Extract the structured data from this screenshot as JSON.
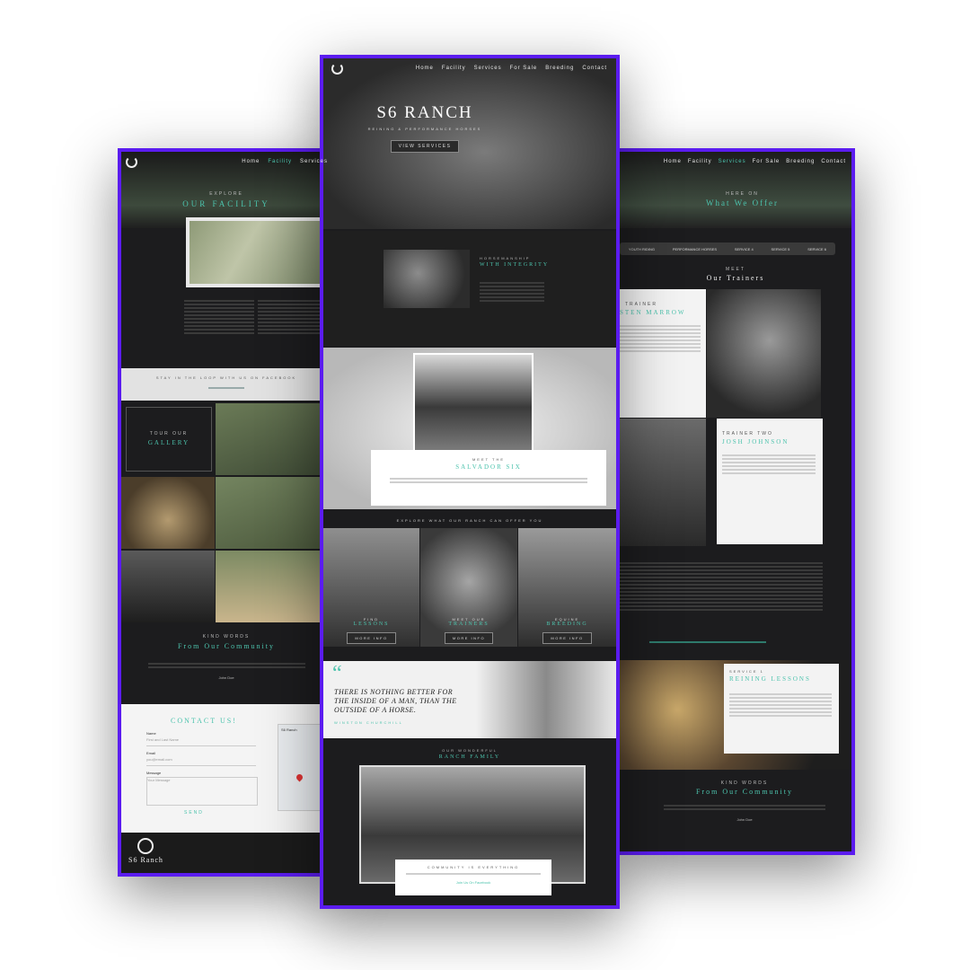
{
  "colors": {
    "frame": "#5b1cf0",
    "accent": "#4cc3ad",
    "dark": "#1c1c1e"
  },
  "left": {
    "nav": [
      "Home",
      "Facility",
      "Services"
    ],
    "explore_label": "EXPLORE",
    "facility_title": "OUR FACILITY",
    "stay_in_loop": "STAY IN THE LOOP WITH US ON FACEBOOK",
    "tour_label": "TOUR OUR",
    "gallery_title": "GALLERY",
    "kind_words_label": "KIND WORDS",
    "community_title": "From Our Community",
    "author": "John Doe",
    "contact_title": "CONTACT US!",
    "form": {
      "name_label": "Name",
      "name_placeholder": "First and Last Name",
      "email_label": "Email",
      "email_placeholder": "you@email.com",
      "message_label": "Message",
      "message_placeholder": "Your Message",
      "send_label": "SEND"
    },
    "map_title": "S6 Ranch",
    "footer_name": "S6 Ranch"
  },
  "center": {
    "nav": [
      "Home",
      "Facility",
      "Services",
      "For Sale",
      "Breeding",
      "Contact"
    ],
    "hero_title": "S6 RANCH",
    "hero_subtitle": "REINING & PERFORMANCE HORSES",
    "hero_button": "VIEW SERVICES",
    "integrity_label": "HORSEMANSHIP",
    "integrity_title": "WITH INTEGRITY",
    "meet_label": "MEET THE",
    "family_title": "SALVADOR SIX",
    "explore_text": "EXPLORE WHAT OUR RANCH CAN OFFER YOU",
    "services": [
      {
        "label": "FIND",
        "title": "LESSONS",
        "button": "MORE INFO"
      },
      {
        "label": "MEET OUR",
        "title": "TRAINERS",
        "button": "MORE INFO"
      },
      {
        "label": "EQUINE",
        "title": "BREEDING",
        "button": "MORE INFO"
      }
    ],
    "quote": "THERE IS NOTHING BETTER FOR THE INSIDE OF A MAN, THAN THE OUTSIDE OF A HORSE.",
    "quote_author": "WINSTON CHURCHILL",
    "ranch_family_label": "OUR WONDERFUL",
    "ranch_family_title": "RANCH FAMILY",
    "community_label": "COMMUNITY IS EVERYTHING",
    "facebook_link": "Join Us On Facebook"
  },
  "right": {
    "nav": [
      "Home",
      "Facility",
      "Services",
      "For Sale",
      "Breeding",
      "Contact"
    ],
    "header_label": "HERE ON",
    "header_title": "What We Offer",
    "tabs": [
      "YOUTH RIDING",
      "PERFORMANCE HORSES",
      "SERVICE 4",
      "SERVICE 5",
      "SERVICE 6"
    ],
    "trainers_label": "MEET",
    "trainers_title": "Our Trainers",
    "trainer1_label": "TRAINER",
    "trainer1_name": "STEN MARROW",
    "trainer2_label": "TRAINER TWO",
    "trainer2_name": "JOSH JOHNSON",
    "service_label": "SERVICE 1",
    "service_title": "REINING LESSONS",
    "kind_words_label": "KIND WORDS",
    "community_title": "From Our Community",
    "author": "John Doe"
  }
}
